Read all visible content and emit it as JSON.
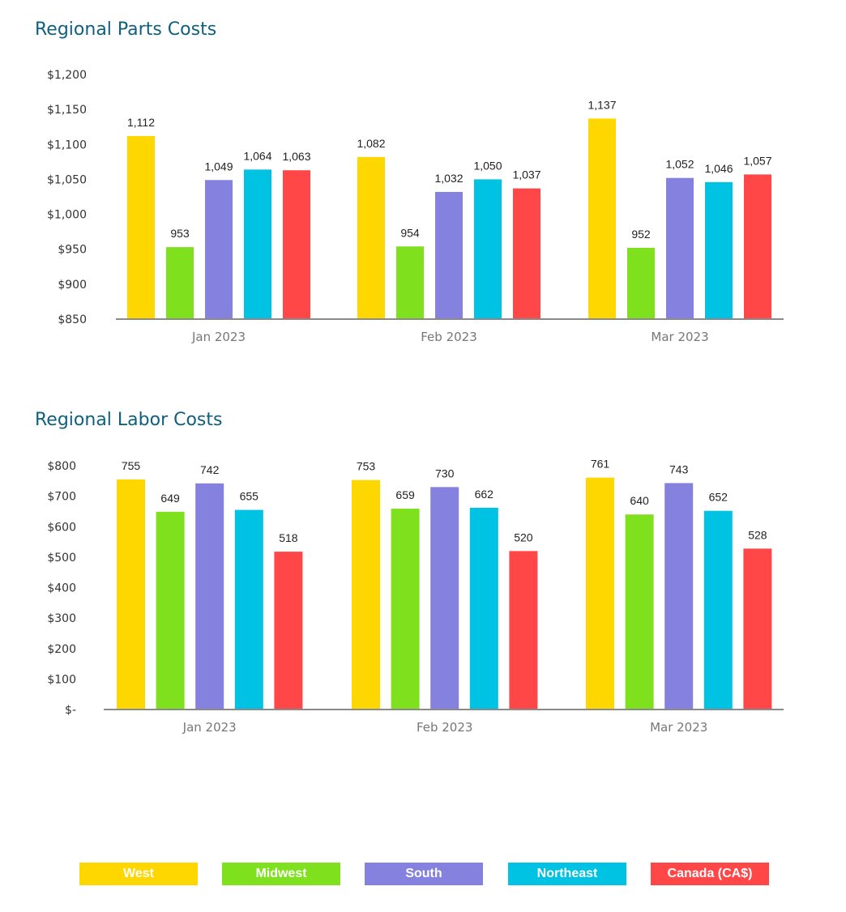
{
  "chart_data": [
    {
      "type": "bar",
      "title": "Regional Parts Costs",
      "categories": [
        "Jan 2023",
        "Feb 2023",
        "Mar 2023"
      ],
      "series": [
        {
          "name": "West",
          "color": "#FFD700",
          "values": [
            1112,
            1082,
            1137
          ],
          "labels": [
            "1,112",
            "1,082",
            "1,137"
          ]
        },
        {
          "name": "Midwest",
          "color": "#7FE01E",
          "values": [
            953,
            954,
            952
          ],
          "labels": [
            "953",
            "954",
            "952"
          ]
        },
        {
          "name": "South",
          "color": "#8482DE",
          "values": [
            1049,
            1032,
            1052
          ],
          "labels": [
            "1,049",
            "1,032",
            "1,052"
          ]
        },
        {
          "name": "Northeast",
          "color": "#00C3E3",
          "values": [
            1064,
            1050,
            1046
          ],
          "labels": [
            "1,064",
            "1,050",
            "1,046"
          ]
        },
        {
          "name": "Canada (CA$)",
          "color": "#FF4747",
          "values": [
            1063,
            1037,
            1057
          ],
          "labels": [
            "1,063",
            "1,037",
            "1,057"
          ]
        }
      ],
      "ylim": [
        850,
        1200
      ],
      "yticks": [
        850,
        900,
        950,
        1000,
        1050,
        1100,
        1150,
        1200
      ],
      "ytick_labels": [
        "$850",
        "$900",
        "$950",
        "$1,000",
        "$1,050",
        "$1,100",
        "$1,150",
        "$1,200"
      ],
      "xlabel": "",
      "ylabel": "",
      "grid": false,
      "legend": "bottom"
    },
    {
      "type": "bar",
      "title": "Regional Labor Costs",
      "categories": [
        "Jan 2023",
        "Feb 2023",
        "Mar 2023"
      ],
      "series": [
        {
          "name": "West",
          "color": "#FFD700",
          "values": [
            755,
            753,
            761
          ],
          "labels": [
            "755",
            "753",
            "761"
          ]
        },
        {
          "name": "Midwest",
          "color": "#7FE01E",
          "values": [
            649,
            659,
            640
          ],
          "labels": [
            "649",
            "659",
            "640"
          ]
        },
        {
          "name": "South",
          "color": "#8482DE",
          "values": [
            742,
            730,
            743
          ],
          "labels": [
            "742",
            "730",
            "743"
          ]
        },
        {
          "name": "Northeast",
          "color": "#00C3E3",
          "values": [
            655,
            662,
            652
          ],
          "labels": [
            "655",
            "662",
            "652"
          ]
        },
        {
          "name": "Canada (CA$)",
          "color": "#FF4747",
          "values": [
            518,
            520,
            528
          ],
          "labels": [
            "518",
            "520",
            "528"
          ]
        }
      ],
      "ylim": [
        0,
        800
      ],
      "yticks": [
        0,
        100,
        200,
        300,
        400,
        500,
        600,
        700,
        800
      ],
      "ytick_labels": [
        "$-",
        "$100",
        "$200",
        "$300",
        "$400",
        "$500",
        "$600",
        "$700",
        "$800"
      ],
      "xlabel": "",
      "ylabel": "",
      "grid": false,
      "legend": "bottom"
    }
  ],
  "legend": [
    {
      "label": "West",
      "color": "#FFD700"
    },
    {
      "label": "Midwest",
      "color": "#7FE01E"
    },
    {
      "label": "South",
      "color": "#8482DE"
    },
    {
      "label": "Northeast",
      "color": "#00C3E3"
    },
    {
      "label": "Canada (CA$)",
      "color": "#FF4747"
    }
  ]
}
